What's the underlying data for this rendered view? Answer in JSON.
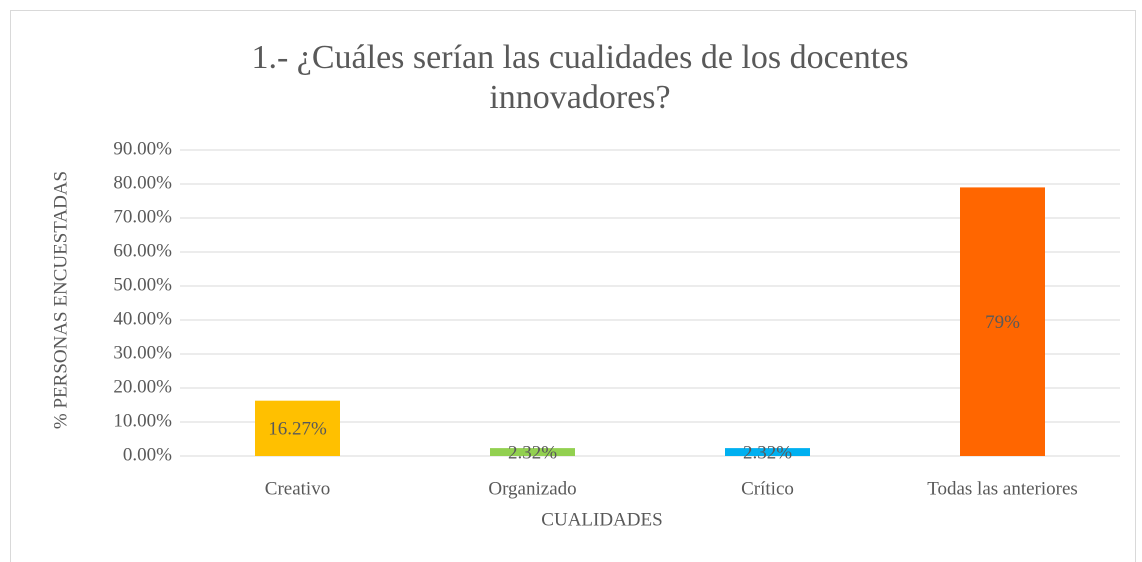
{
  "chart_data": {
    "type": "bar",
    "title": "1.- ¿Cuáles serían las cualidades de los docentes innovadores?",
    "xlabel": "CUALIDADES",
    "ylabel": "% PERSONAS ENCUESTADAS",
    "categories": [
      "Creativo",
      "Organizado",
      "Crítico",
      "Todas las anteriores"
    ],
    "values": [
      16.27,
      2.32,
      2.32,
      79
    ],
    "value_labels": [
      "16.27%",
      "2.32%",
      "2.32%",
      "79%"
    ],
    "colors": [
      "#ffc000",
      "#92d050",
      "#00b0f0",
      "#ff6600"
    ],
    "ylim": [
      0,
      90
    ],
    "yticks": [
      {
        "value": 0,
        "label": "0.00%"
      },
      {
        "value": 10,
        "label": "10.00%"
      },
      {
        "value": 20,
        "label": "20.00%"
      },
      {
        "value": 30,
        "label": "30.00%"
      },
      {
        "value": 40,
        "label": "40.00%"
      },
      {
        "value": 50,
        "label": "50.00%"
      },
      {
        "value": 60,
        "label": "60.00%"
      },
      {
        "value": 70,
        "label": "70.00%"
      },
      {
        "value": 80,
        "label": "80.00%"
      },
      {
        "value": 90,
        "label": "90.00%"
      }
    ],
    "grid": true
  }
}
